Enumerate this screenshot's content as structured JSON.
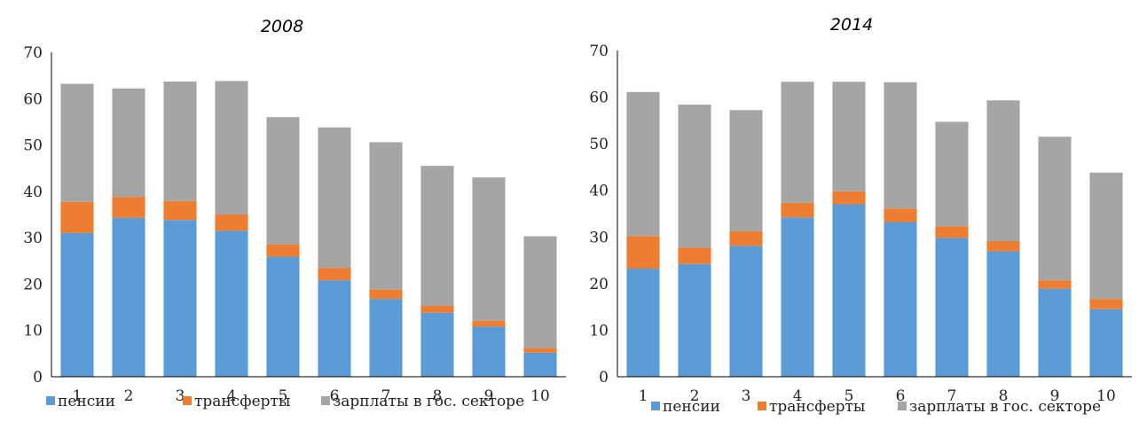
{
  "chart_data": [
    {
      "type": "bar",
      "stacked": true,
      "title": "2008",
      "categories": [
        "1",
        "2",
        "3",
        "4",
        "5",
        "6",
        "7",
        "8",
        "9",
        "10"
      ],
      "ylim": [
        0,
        70
      ],
      "yticks": [
        "0",
        "10",
        "20",
        "30",
        "40",
        "50",
        "60",
        "70"
      ],
      "grid": false,
      "legend_position": "bottom",
      "series": [
        {
          "name": "пенсии",
          "color": "#5B9BD5",
          "values": [
            31,
            34.3,
            33.8,
            31.5,
            25.9,
            20.8,
            16.8,
            13.8,
            10.8,
            5.2
          ]
        },
        {
          "name": "трансферты",
          "color": "#ED7D31",
          "values": [
            6.7,
            4.5,
            4.1,
            3.5,
            2.6,
            2.7,
            2.0,
            1.5,
            1.3,
            1.0
          ]
        },
        {
          "name": "зарплаты в гос. секторе",
          "color": "#A5A5A5",
          "values": [
            25.5,
            23.4,
            25.8,
            28.8,
            27.5,
            30.3,
            31.8,
            30.2,
            30.9,
            24.1
          ]
        }
      ]
    },
    {
      "type": "bar",
      "stacked": true,
      "title": "2014",
      "categories": [
        "1",
        "2",
        "3",
        "4",
        "5",
        "6",
        "7",
        "8",
        "9",
        "10"
      ],
      "ylim": [
        0,
        70
      ],
      "yticks": [
        "0",
        "10",
        "20",
        "30",
        "40",
        "50",
        "60",
        "70"
      ],
      "grid": false,
      "legend_position": "bottom",
      "series": [
        {
          "name": "пенсии",
          "color": "#5B9BD5",
          "values": [
            23.2,
            24.2,
            28.1,
            34.2,
            37,
            33.2,
            29.8,
            26.9,
            18.9,
            14.5
          ]
        },
        {
          "name": "трансферты",
          "color": "#ED7D31",
          "values": [
            7.0,
            3.5,
            3.1,
            3.1,
            2.8,
            2.9,
            2.5,
            2.2,
            1.8,
            2.2
          ]
        },
        {
          "name": "зарплаты в гос. секторе",
          "color": "#A5A5A5",
          "values": [
            30.9,
            30.7,
            26.0,
            26.0,
            23.5,
            27.1,
            22.4,
            30.2,
            30.8,
            27.1
          ]
        }
      ]
    }
  ]
}
